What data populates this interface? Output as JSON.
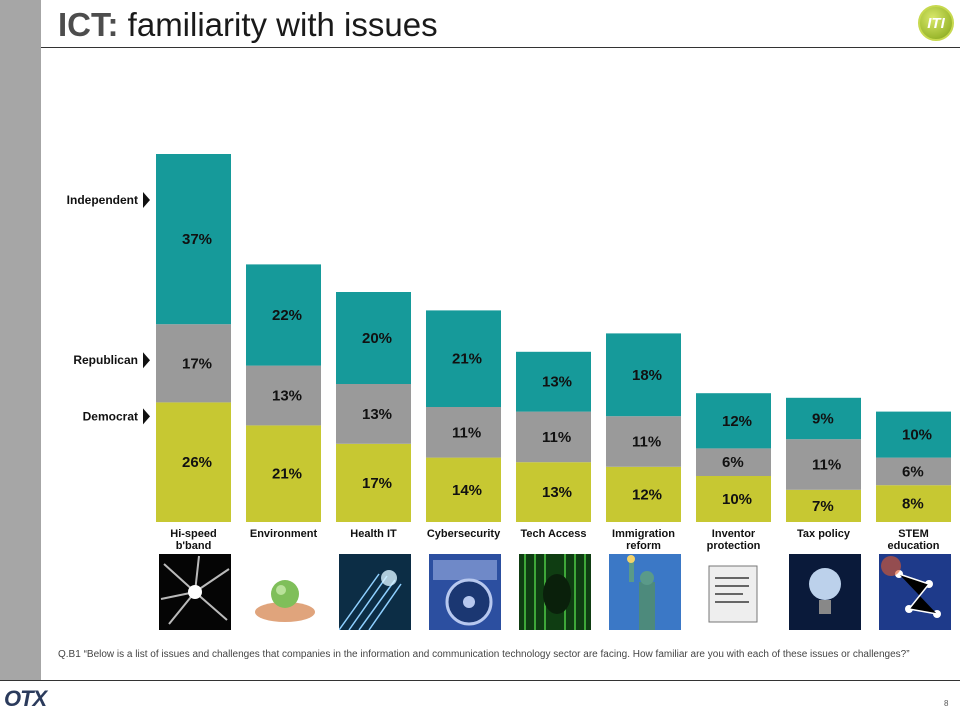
{
  "header": {
    "title_prefix": "ICT:",
    "title_rest": " familiarity with issues",
    "logo_text": "ITI"
  },
  "colors": {
    "Independent": "#169a9a",
    "Republican": "#9a9a9a",
    "Democrat": "#c7c832",
    "sidebar": "#a6a6a6"
  },
  "chart_data": {
    "type": "bar",
    "stacked": true,
    "categories": [
      "Hi-speed b'band",
      "Environment",
      "Health IT",
      "Cybersecurity",
      "Tech Access",
      "Immigration reform",
      "Inventor protection",
      "Tax policy",
      "STEM education"
    ],
    "category_lines": [
      [
        "Hi-speed",
        "b'band"
      ],
      [
        "Environment"
      ],
      [
        "Health IT"
      ],
      [
        "Cybersecurity"
      ],
      [
        "Tech Access"
      ],
      [
        "Immigration",
        "reform"
      ],
      [
        "Inventor",
        "protection"
      ],
      [
        "Tax policy"
      ],
      [
        "STEM",
        "education"
      ]
    ],
    "series": [
      {
        "name": "Democrat",
        "values": [
          26,
          21,
          17,
          14,
          13,
          12,
          10,
          7,
          8
        ]
      },
      {
        "name": "Republican",
        "values": [
          17,
          13,
          13,
          11,
          11,
          11,
          6,
          11,
          6
        ]
      },
      {
        "name": "Independent",
        "values": [
          37,
          22,
          20,
          21,
          13,
          18,
          12,
          9,
          10
        ]
      }
    ],
    "value_suffix": "%",
    "ylim": [
      0,
      80
    ],
    "legend": "left, arrow markers",
    "grid": false
  },
  "images": [
    {
      "name": "fiber-optic-image",
      "icon": "light-streaks"
    },
    {
      "name": "globe-in-hands-image",
      "icon": "globe-hands"
    },
    {
      "name": "fiber-strands-image",
      "icon": "fiber-strands"
    },
    {
      "name": "security-dial-image",
      "icon": "lock-dial"
    },
    {
      "name": "digital-face-image",
      "icon": "matrix-face"
    },
    {
      "name": "statue-of-liberty-image",
      "icon": "statue-of-liberty"
    },
    {
      "name": "irs-tax-form-image",
      "icon": "puzzle-tax-forms"
    },
    {
      "name": "light-bulb-image",
      "icon": "light-bulb"
    },
    {
      "name": "molecule-network-image",
      "icon": "molecule-network"
    }
  ],
  "footnote": "Q.B1 “Below is a list of issues and challenges that companies in the information and communication technology sector are facing. How familiar are you with each of these issues or challenges?”",
  "footer": {
    "brand": "OTX",
    "page_number": "8"
  }
}
